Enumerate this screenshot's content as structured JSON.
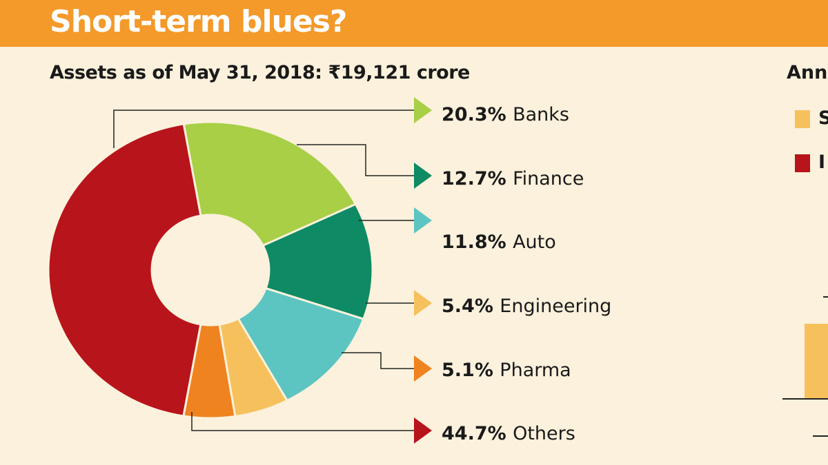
{
  "header": {
    "title": "Short-term blues?"
  },
  "right_panel": {
    "title_fragment": "Ann",
    "legend": [
      {
        "label": "S",
        "color": "#f6c15c"
      },
      {
        "label": "I",
        "color": "#b8141b"
      }
    ]
  },
  "chart_data": {
    "type": "pie",
    "subtitle": "Assets as of May 31, 2018: ₹19,121 crore",
    "slices": [
      {
        "label": "Banks",
        "pct_label": "20.3%",
        "value": 20.3,
        "color": "#a8cf45"
      },
      {
        "label": "Finance",
        "pct_label": "12.7%",
        "value": 12.7,
        "color": "#0e8a64"
      },
      {
        "label": "Auto",
        "pct_label": "11.8%",
        "value": 11.8,
        "color": "#5cc5c2"
      },
      {
        "label": "Engineering",
        "pct_label": "5.4%",
        "value": 5.4,
        "color": "#f6c15c"
      },
      {
        "label": "Pharma",
        "pct_label": "5.1%",
        "value": 5.1,
        "color": "#ef8320"
      },
      {
        "label": "Others",
        "pct_label": "44.7%",
        "value": 44.7,
        "color": "#b8141b"
      }
    ],
    "donut": true,
    "legend_placement": "right"
  }
}
